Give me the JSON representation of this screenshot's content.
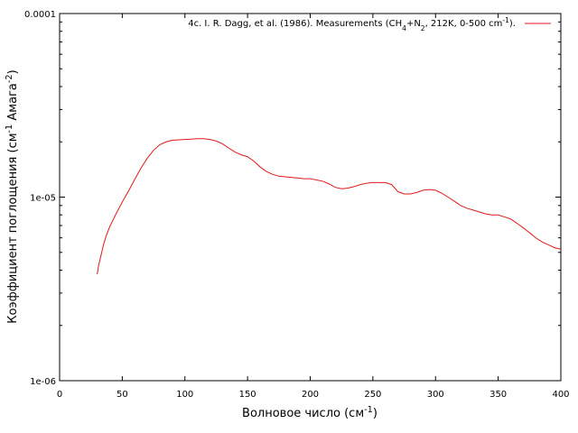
{
  "chart_data": {
    "type": "line",
    "title": "",
    "xlabel": {
      "main": "Волновое число (см",
      "sup": "-1",
      "tail": ")"
    },
    "ylabel": {
      "main": "Коэффициент поглощения (см",
      "sup1": "-1",
      "mid": " Амага",
      "sup2": "-2",
      "tail": ")"
    },
    "xlim": [
      0,
      400
    ],
    "ylim": [
      1e-06,
      0.0001
    ],
    "yscale": "log",
    "grid": false,
    "legend_position": "top-right",
    "x_ticks": [
      0,
      50,
      100,
      150,
      200,
      250,
      300,
      350,
      400
    ],
    "x_tick_labels": [
      "0",
      "50",
      "100",
      "150",
      "200",
      "250",
      "300",
      "350",
      "400"
    ],
    "y_ticks": [
      1e-06,
      1e-05,
      0.0001
    ],
    "y_tick_labels": [
      "1e-06",
      "1e-05",
      "0.0001"
    ],
    "series": [
      {
        "name": "4c. I. R. Dagg, et al. (1986). Measurements (CH4+N2, 212K, 0-500 cm-1).",
        "name_parts": [
          {
            "t": "4c. I. R. Dagg, et al. (1986). Measurements (CH",
            "s": "n"
          },
          {
            "t": "4",
            "s": "sub"
          },
          {
            "t": "+N",
            "s": "n"
          },
          {
            "t": "2",
            "s": "sub"
          },
          {
            "t": ", 212K, 0-500 cm",
            "s": "n"
          },
          {
            "t": "-1",
            "s": "sup"
          },
          {
            "t": ").",
            "s": "n"
          }
        ],
        "color": "#e0191b",
        "x": [
          30,
          31,
          33,
          35,
          37,
          40,
          45,
          50,
          55,
          60,
          65,
          70,
          75,
          80,
          85,
          90,
          95,
          100,
          105,
          110,
          115,
          120,
          125,
          130,
          135,
          140,
          145,
          150,
          155,
          160,
          165,
          170,
          175,
          180,
          185,
          190,
          195,
          200,
          205,
          210,
          215,
          220,
          225,
          230,
          235,
          240,
          245,
          250,
          255,
          260,
          265,
          270,
          275,
          280,
          285,
          290,
          295,
          300,
          305,
          310,
          315,
          320,
          325,
          330,
          335,
          340,
          345,
          350,
          355,
          360,
          365,
          370,
          375,
          380,
          385,
          390,
          395,
          400
        ],
        "y": [
          3.8e-06,
          4.2e-06,
          4.8e-06,
          5.5e-06,
          6.1e-06,
          6.9e-06,
          8.1e-06,
          9.4e-06,
          1.08e-05,
          1.25e-05,
          1.44e-05,
          1.63e-05,
          1.8e-05,
          1.93e-05,
          2e-05,
          2.04e-05,
          2.05e-05,
          2.06e-05,
          2.07e-05,
          2.08e-05,
          2.08e-05,
          2.06e-05,
          2.02e-05,
          1.95e-05,
          1.85e-05,
          1.76e-05,
          1.7e-05,
          1.66e-05,
          1.57e-05,
          1.46e-05,
          1.38e-05,
          1.33e-05,
          1.3e-05,
          1.29e-05,
          1.28e-05,
          1.27e-05,
          1.26e-05,
          1.26e-05,
          1.24e-05,
          1.22e-05,
          1.18e-05,
          1.13e-05,
          1.11e-05,
          1.12e-05,
          1.14e-05,
          1.17e-05,
          1.19e-05,
          1.2e-05,
          1.2e-05,
          1.2e-05,
          1.17e-05,
          1.07e-05,
          1.04e-05,
          1.04e-05,
          1.06e-05,
          1.09e-05,
          1.1e-05,
          1.09e-05,
          1.05e-05,
          1e-05,
          9.5e-06,
          9e-06,
          8.7e-06,
          8.5e-06,
          8.3e-06,
          8.1e-06,
          8e-06,
          8e-06,
          7.8e-06,
          7.6e-06,
          7.2e-06,
          6.8e-06,
          6.4e-06,
          6e-06,
          5.7e-06,
          5.5e-06,
          5.3e-06,
          5.2e-06
        ]
      }
    ]
  }
}
